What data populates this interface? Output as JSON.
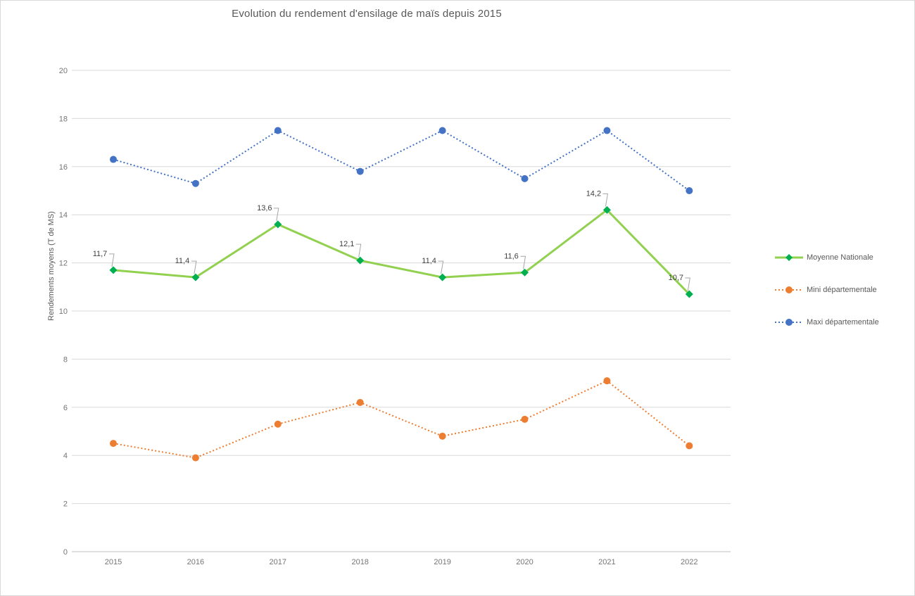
{
  "title": "Evolution du rendement d'ensilage de maïs depuis 2015",
  "chart_data": {
    "type": "line",
    "title": "Evolution du rendement d'ensilage de maïs depuis 2015",
    "xlabel": "",
    "ylabel": "Rendements moyens (T de MS)",
    "x": [
      "2015",
      "2016",
      "2017",
      "2018",
      "2019",
      "2020",
      "2021",
      "2022"
    ],
    "ylim": [
      0,
      20
    ],
    "ytick_step": 2,
    "yticks": [
      "0",
      "2",
      "4",
      "6",
      "8",
      "10",
      "12",
      "14",
      "16",
      "18",
      "20"
    ],
    "grid": true,
    "legend_position": "right",
    "series": [
      {
        "name": "Moyenne Nationale",
        "values": [
          11.7,
          11.4,
          13.6,
          12.1,
          11.4,
          11.6,
          14.2,
          10.7
        ],
        "data_labels": [
          "11,7",
          "11,4",
          "13,6",
          "12,1",
          "11,4",
          "11,6",
          "14,2",
          "10,7"
        ],
        "color": "#92D050",
        "marker_color": "#00B050",
        "marker": "diamond",
        "line_style": "solid",
        "line_width": 3
      },
      {
        "name": "Mini départementale",
        "values": [
          4.5,
          3.9,
          5.3,
          6.2,
          4.8,
          5.5,
          7.1,
          4.4
        ],
        "data_labels": null,
        "color": "#ED7D31",
        "marker_color": "#ED7D31",
        "marker": "circle",
        "line_style": "dotted",
        "line_width": 2
      },
      {
        "name": "Maxi départementale",
        "values": [
          16.3,
          15.3,
          17.5,
          15.8,
          17.5,
          15.5,
          17.5,
          15.0
        ],
        "data_labels": null,
        "color": "#4472C4",
        "marker_color": "#4472C4",
        "marker": "circle",
        "line_style": "dotted",
        "line_width": 2
      }
    ]
  },
  "colors": {
    "background": "#FFFFFF",
    "border": "#D9D9D9",
    "gridline": "#D9D9D9",
    "axis_line": "#BFBFBF",
    "tick_text": "#757575",
    "title_text": "#595959",
    "data_label_text": "#404040",
    "leader_line": "#A6A6A6"
  }
}
